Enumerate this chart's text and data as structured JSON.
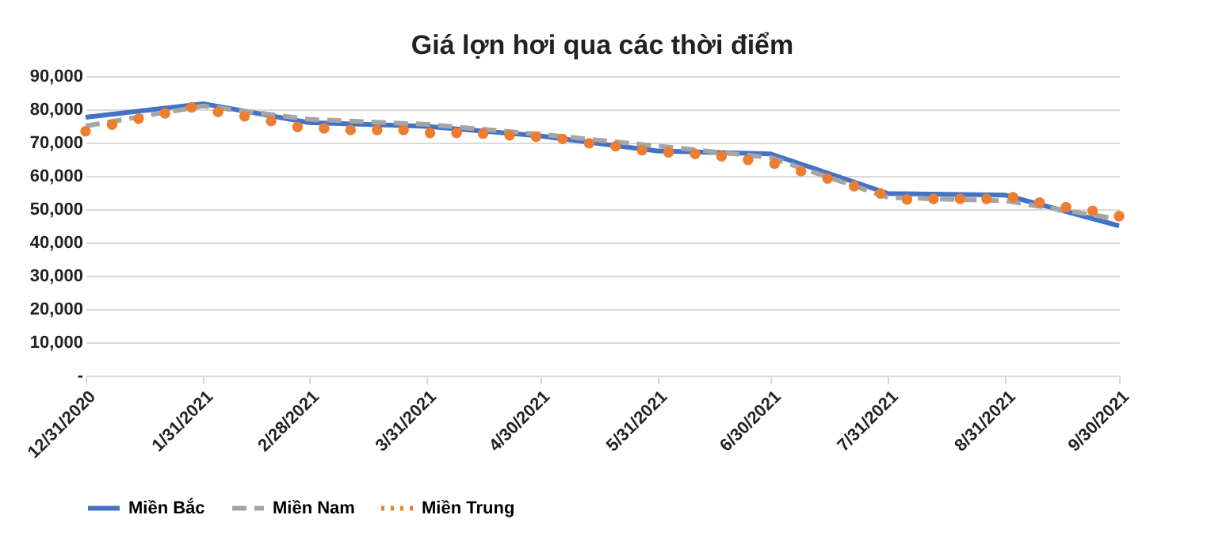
{
  "chart_data": {
    "type": "line",
    "title": "Giá lợn hơi qua các thời điểm",
    "series": [
      {
        "name": "Miền Bắc",
        "type": "line",
        "color": "#4472c4",
        "line_style": "solid",
        "x": [
          "2020-12-31",
          "2021-01-31",
          "2021-02-28",
          "2021-03-31",
          "2021-04-30",
          "2021-05-31",
          "2021-06-30",
          "2021-07-31",
          "2021-08-31",
          "2021-09-30"
        ],
        "values": [
          77600,
          81700,
          76000,
          74900,
          72000,
          67500,
          66600,
          54700,
          54200,
          45000
        ]
      },
      {
        "name": "Miền Nam",
        "type": "line",
        "color": "#a5a5a5",
        "line_style": "dashed",
        "x": [
          "2020-12-31",
          "2021-01-31",
          "2021-02-28",
          "2021-03-31",
          "2021-04-30",
          "2021-05-31",
          "2021-06-30",
          "2021-07-31",
          "2021-08-31",
          "2021-09-30"
        ],
        "values": [
          75000,
          81000,
          77000,
          75500,
          72500,
          69000,
          65500,
          53500,
          52500,
          47000
        ]
      },
      {
        "name": "Miền Trung",
        "type": "scatter",
        "marker": "circle",
        "color": "#ed7d31",
        "x": [
          "2020-12-31",
          "2021-01-07",
          "2021-01-14",
          "2021-01-21",
          "2021-01-28",
          "2021-02-04",
          "2021-02-11",
          "2021-02-18",
          "2021-02-25",
          "2021-03-04",
          "2021-03-11",
          "2021-03-18",
          "2021-03-25",
          "2021-04-01",
          "2021-04-08",
          "2021-04-15",
          "2021-04-22",
          "2021-04-29",
          "2021-05-06",
          "2021-05-13",
          "2021-05-20",
          "2021-05-27",
          "2021-06-03",
          "2021-06-10",
          "2021-06-17",
          "2021-06-24",
          "2021-07-01",
          "2021-07-08",
          "2021-07-15",
          "2021-07-22",
          "2021-07-29",
          "2021-08-05",
          "2021-08-12",
          "2021-08-19",
          "2021-08-26",
          "2021-09-02",
          "2021-09-09",
          "2021-09-16",
          "2021-09-23",
          "2021-09-30"
        ],
        "values": [
          73400,
          75400,
          77200,
          78800,
          80600,
          79200,
          77900,
          76500,
          74700,
          74300,
          73800,
          73800,
          73800,
          72900,
          72900,
          72700,
          72200,
          71800,
          71100,
          69800,
          68900,
          67700,
          67100,
          66600,
          65900,
          64800,
          63700,
          61400,
          59200,
          56900,
          54700,
          52900,
          53100,
          53100,
          53100,
          53600,
          52000,
          50600,
          49500,
          47900
        ]
      }
    ],
    "xlim": [
      "2020-12-31",
      "2021-09-30"
    ],
    "xticks": [
      {
        "value": "2020-12-31",
        "label": "12/31/2020"
      },
      {
        "value": "2021-01-31",
        "label": "1/31/2021"
      },
      {
        "value": "2021-02-28",
        "label": "2/28/2021"
      },
      {
        "value": "2021-03-31",
        "label": "3/31/2021"
      },
      {
        "value": "2021-04-30",
        "label": "4/30/2021"
      },
      {
        "value": "2021-05-31",
        "label": "5/31/2021"
      },
      {
        "value": "2021-06-30",
        "label": "6/30/2021"
      },
      {
        "value": "2021-07-31",
        "label": "7/31/2021"
      },
      {
        "value": "2021-08-31",
        "label": "8/31/2021"
      },
      {
        "value": "2021-09-30",
        "label": "9/30/2021"
      }
    ],
    "ylim": [
      0,
      90000
    ],
    "yticks": [
      {
        "value": 0,
        "label": "-"
      },
      {
        "value": 10000,
        "label": "10,000"
      },
      {
        "value": 20000,
        "label": "20,000"
      },
      {
        "value": 30000,
        "label": "30,000"
      },
      {
        "value": 40000,
        "label": "40,000"
      },
      {
        "value": 50000,
        "label": "50,000"
      },
      {
        "value": 60000,
        "label": "60,000"
      },
      {
        "value": 70000,
        "label": "70,000"
      },
      {
        "value": 80000,
        "label": "80,000"
      },
      {
        "value": 90000,
        "label": "90,000"
      }
    ],
    "grid": "y",
    "legend": "bottom"
  }
}
